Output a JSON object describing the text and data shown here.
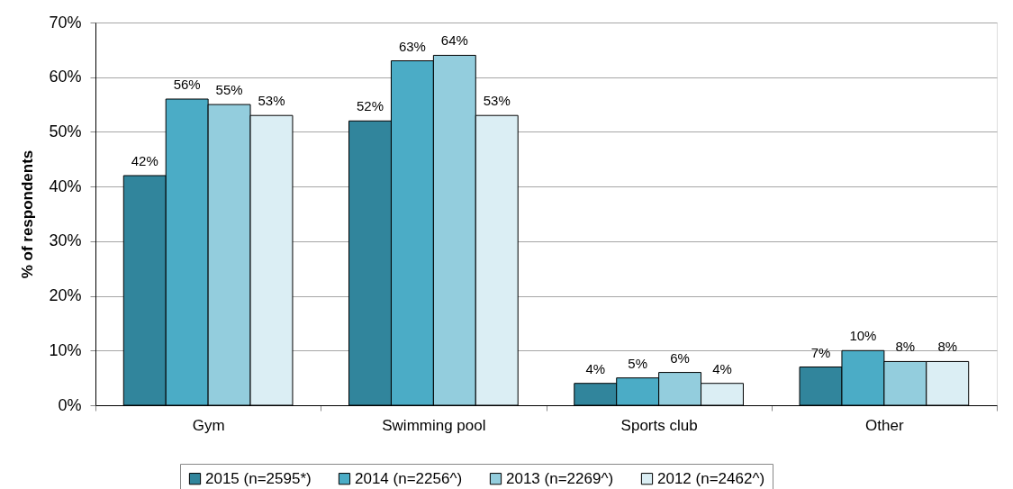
{
  "chart_data": {
    "type": "bar",
    "ylabel": "% of respondents",
    "categories": [
      "Gym",
      "Swimming pool",
      "Sports club",
      "Other"
    ],
    "series": [
      {
        "name": "2015 (n=2595*)",
        "color": "#31859c",
        "values": [
          42,
          52,
          4,
          7
        ],
        "value_labels": [
          "42%",
          "52%",
          "4%",
          "7%"
        ]
      },
      {
        "name": "2014 (n=2256^)",
        "color": "#4bacc6",
        "values": [
          56,
          63,
          5,
          10
        ],
        "value_labels": [
          "56%",
          "63%",
          "5%",
          "10%"
        ]
      },
      {
        "name": "2013 (n=2269^)",
        "color": "#93cddd",
        "values": [
          55,
          64,
          6,
          8
        ],
        "value_labels": [
          "55%",
          "64%",
          "6%",
          "8%"
        ]
      },
      {
        "name": "2012 (n=2462^)",
        "color": "#dbeef4",
        "values": [
          53,
          53,
          4,
          8
        ],
        "value_labels": [
          "53%",
          "53%",
          "4%",
          "8%"
        ]
      }
    ],
    "ylim": [
      0,
      70
    ],
    "yticks": [
      {
        "value": 0,
        "label": "0%"
      },
      {
        "value": 10,
        "label": "10%"
      },
      {
        "value": 20,
        "label": "20%"
      },
      {
        "value": 30,
        "label": "30%"
      },
      {
        "value": 40,
        "label": "40%"
      },
      {
        "value": 50,
        "label": "50%"
      },
      {
        "value": 60,
        "label": "60%"
      },
      {
        "value": 70,
        "label": "70%"
      }
    ],
    "grid": "y",
    "legend": "bottom"
  }
}
